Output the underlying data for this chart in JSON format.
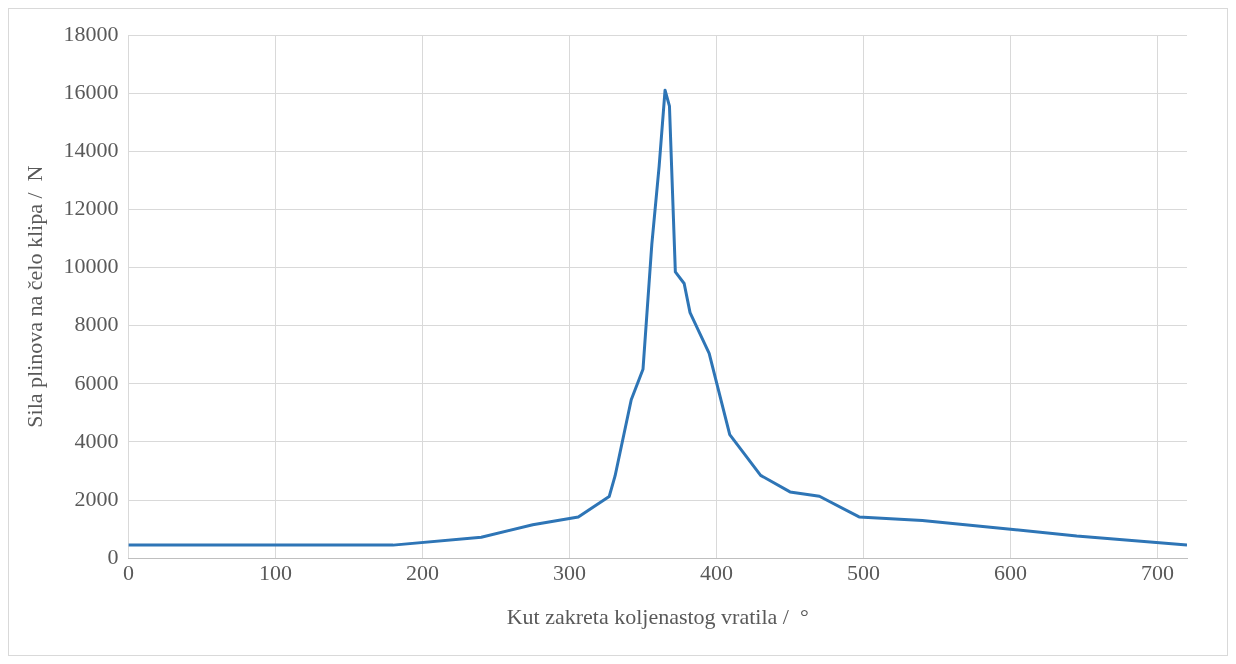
{
  "chart_data": {
    "type": "line",
    "xlabel": "Kut zakreta koljenastog vratila /  °",
    "ylabel": "Sila plinova na čelo klipa /  N",
    "x": [
      0,
      180,
      240,
      275,
      306,
      327,
      331,
      342,
      350,
      356,
      361,
      365,
      368,
      372,
      378,
      382,
      395,
      409,
      430,
      450,
      470,
      497,
      540,
      600,
      645,
      720
    ],
    "series": [
      {
        "color": "#2e75b6",
        "values": [
          450,
          450,
          720,
          1150,
          1420,
          2120,
          2830,
          5450,
          6500,
          10800,
          13500,
          16100,
          15550,
          9850,
          9450,
          8450,
          7050,
          4250,
          2850,
          2280,
          2130,
          1420,
          1300,
          1000,
          760,
          450
        ]
      }
    ],
    "xlim": [
      0,
      720
    ],
    "xticks": [
      0,
      100,
      200,
      300,
      400,
      500,
      600,
      700
    ],
    "ylim": [
      0,
      18000
    ],
    "yticks": [
      0,
      2000,
      4000,
      6000,
      8000,
      10000,
      12000,
      14000,
      16000,
      18000
    ],
    "grid": true,
    "marker": "none",
    "line_style": "solid",
    "legend": false
  }
}
